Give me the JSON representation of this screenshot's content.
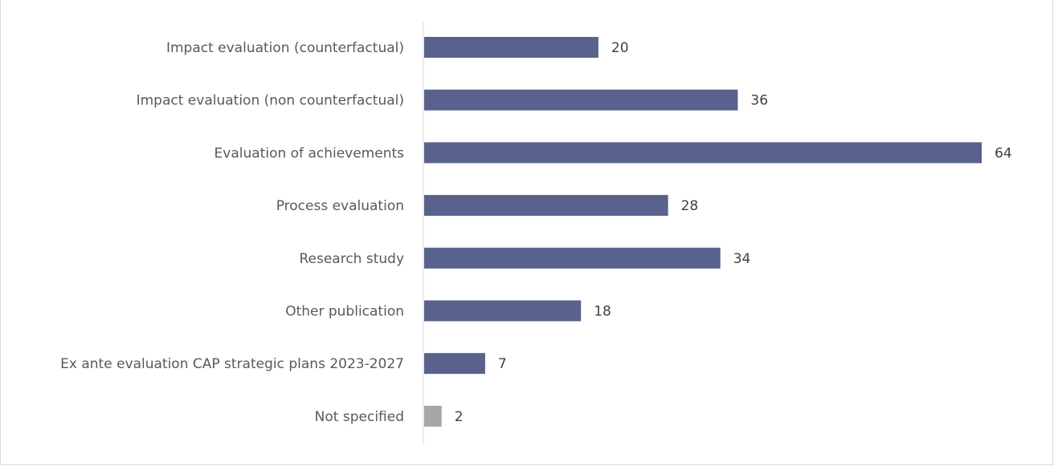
{
  "chart_data": {
    "type": "bar",
    "orientation": "horizontal",
    "title": "",
    "xlabel": "",
    "ylabel": "",
    "categories": [
      "Impact evaluation (counterfactual)",
      "Impact evaluation (non counterfactual)",
      "Evaluation of achievements",
      "Process evaluation",
      "Research study",
      "Other publication",
      "Ex ante evaluation CAP strategic plans 2023-2027",
      "Not specified"
    ],
    "values": [
      20,
      36,
      64,
      28,
      34,
      18,
      7,
      2
    ],
    "xlim": [
      0,
      64
    ],
    "grid": false,
    "legend": "none",
    "data_labels": true,
    "colors": {
      "bar": "#58628c",
      "not_specified_bar": "#a6a6a6",
      "axis": "#d9d9d9",
      "category_text": "#595959",
      "value_text": "#404040"
    }
  }
}
